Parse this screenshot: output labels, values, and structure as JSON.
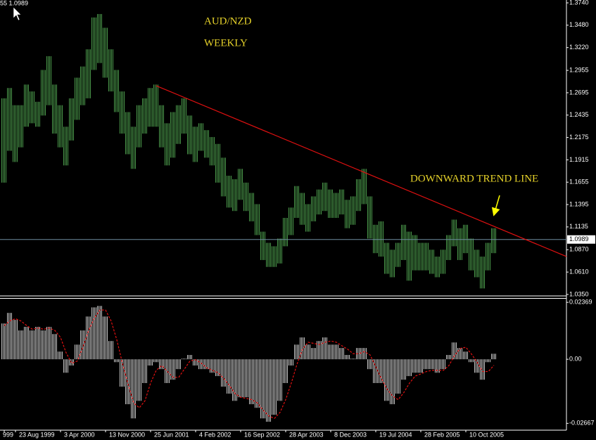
{
  "chart_data": [
    {
      "type": "range",
      "header": "55 1.0989",
      "title": "AUD/NZD",
      "subtitle": "WEEKLY",
      "annotation": "DOWNWARD TREND LINE",
      "color": "#4c9c4c",
      "categories": [
        "999",
        null,
        "23 Aug 1999",
        null,
        null,
        null,
        null,
        null,
        null,
        null,
        "3 Apr 2000",
        null,
        null,
        null,
        null,
        null,
        null,
        null,
        "13 Nov 2000",
        null,
        null,
        null,
        null,
        null,
        null,
        null,
        "25 Jun 2001",
        null,
        null,
        null,
        null,
        null,
        null,
        null,
        "4 Feb 2002",
        null,
        null,
        null,
        null,
        null,
        null,
        null,
        "16 Sep 2002",
        null,
        null,
        null,
        null,
        null,
        null,
        null,
        "28 Apr 2003",
        null,
        null,
        null,
        null,
        null,
        null,
        null,
        "8 Dec 2003",
        null,
        null,
        null,
        null,
        null,
        null,
        null,
        "19 Jul 2004",
        null,
        null,
        null,
        null,
        null,
        null,
        null,
        "28 Feb 2005",
        null,
        null,
        null,
        null,
        null,
        null,
        null,
        "10 Oct 2005",
        null,
        null,
        null,
        null,
        null
      ],
      "high": [
        1.263,
        1.275,
        1.255,
        1.255,
        1.279,
        1.271,
        1.259,
        1.296,
        1.312,
        1.279,
        1.255,
        1.23,
        1.263,
        1.287,
        1.3,
        1.32,
        1.357,
        1.361,
        1.345,
        1.32,
        1.296,
        1.271,
        1.247,
        1.23,
        1.255,
        1.263,
        1.275,
        1.279,
        1.255,
        1.234,
        1.247,
        1.255,
        1.263,
        1.243,
        1.23,
        1.234,
        1.226,
        1.218,
        1.21,
        1.194,
        1.173,
        1.169,
        1.181,
        1.165,
        1.153,
        1.14,
        1.108,
        1.095,
        1.091,
        1.1,
        1.124,
        1.136,
        1.161,
        1.153,
        1.14,
        1.149,
        1.157,
        1.165,
        1.157,
        1.153,
        1.157,
        1.145,
        1.149,
        1.169,
        1.181,
        1.149,
        1.116,
        1.12,
        1.095,
        1.087,
        1.095,
        1.116,
        1.108,
        1.104,
        1.095,
        1.095,
        1.087,
        1.079,
        1.087,
        1.104,
        1.122,
        1.112,
        1.116,
        1.1,
        1.087,
        1.079,
        1.095,
        1.112
      ],
      "low": [
        1.165,
        1.202,
        1.189,
        1.206,
        1.23,
        1.234,
        1.23,
        1.243,
        1.255,
        1.222,
        1.206,
        1.185,
        1.214,
        1.238,
        1.255,
        1.263,
        1.296,
        1.304,
        1.287,
        1.271,
        1.247,
        1.222,
        1.198,
        1.181,
        1.206,
        1.222,
        1.23,
        1.23,
        1.206,
        1.185,
        1.194,
        1.21,
        1.222,
        1.198,
        1.189,
        1.202,
        1.194,
        1.185,
        1.165,
        1.149,
        1.136,
        1.132,
        1.145,
        1.132,
        1.12,
        1.104,
        1.075,
        1.067,
        1.067,
        1.071,
        1.091,
        1.104,
        1.124,
        1.116,
        1.108,
        1.12,
        1.128,
        1.132,
        1.124,
        1.124,
        1.128,
        1.112,
        1.116,
        1.132,
        1.14,
        1.1,
        1.083,
        1.079,
        1.059,
        1.055,
        1.067,
        1.075,
        1.051,
        1.063,
        1.063,
        1.063,
        1.059,
        1.055,
        1.059,
        1.075,
        1.091,
        1.075,
        1.083,
        1.063,
        1.055,
        1.042,
        1.063,
        1.083
      ],
      "current": 1.0989,
      "current_color": "#6e8ca0",
      "trend_line": {
        "color": "#e01010",
        "x": [
          27,
          99.875
        ],
        "y": [
          1.2776,
          1.0791
        ]
      },
      "ylim": [
        1.0333,
        1.3773
      ],
      "yticks": [
        {
          "value": 1.374,
          "label": "1.3740"
        },
        {
          "value": 1.348,
          "label": "1.3480"
        },
        {
          "value": 1.322,
          "label": "1.3220"
        },
        {
          "value": 1.2955,
          "label": "1.2955"
        },
        {
          "value": 1.2695,
          "label": "1.2695"
        },
        {
          "value": 1.2435,
          "label": "1.2435"
        },
        {
          "value": 1.2175,
          "label": "1.2175"
        },
        {
          "value": 1.1915,
          "label": "1.1915"
        },
        {
          "value": 1.1655,
          "label": "1.1655"
        },
        {
          "value": 1.1395,
          "label": "1.1395"
        },
        {
          "value": 1.1135,
          "label": "1.1135"
        },
        {
          "value": 1.087,
          "label": "1.0870"
        },
        {
          "value": 1.061,
          "label": "1.0610"
        },
        {
          "value": 1.035,
          "label": "1.0350"
        }
      ]
    },
    {
      "type": "histogram",
      "series": [
        {
          "color": "#c8c8c8",
          "values": [
            0.0149,
            0.0193,
            0.0164,
            0.012,
            0.0135,
            0.012,
            0.0135,
            0.012,
            0.0135,
            0.0105,
            0.0032,
            -0.0056,
            -0.0026,
            0.0061,
            0.012,
            0.0178,
            0.0216,
            0.0222,
            0.0178,
            0.0076,
            -0.0012,
            -0.0114,
            -0.0187,
            -0.0246,
            -0.0173,
            -0.0099,
            -0.0026,
            -0.0012,
            -0.0041,
            -0.0099,
            -0.0085,
            -0.0041,
            0.0003,
            0.0018,
            -0.0026,
            -0.0041,
            -0.0041,
            -0.0056,
            -0.007,
            -0.0114,
            -0.0143,
            -0.0173,
            -0.0158,
            -0.0158,
            -0.0187,
            -0.0202,
            -0.0246,
            -0.026,
            -0.0231,
            -0.0173,
            -0.0099,
            -0.0026,
            0.0061,
            0.0091,
            0.0061,
            0.0047,
            0.0076,
            0.0091,
            0.0061,
            0.0061,
            0.0047,
            0.0018,
            0.0003,
            0.0047,
            0.0047,
            -0.0041,
            -0.0099,
            -0.0099,
            -0.0173,
            -0.0187,
            -0.0143,
            -0.0085,
            -0.007,
            -0.0056,
            -0.0056,
            -0.0041,
            -0.0041,
            -0.0056,
            -0.0041,
            0.0018,
            0.007,
            0.0047,
            0.0032,
            -0.0012,
            -0.0056,
            -0.0085,
            -0.0012,
            0.0023
          ]
        },
        {
          "color": "#e01010",
          "dashed": true,
          "values": [
            0.014,
            0.016,
            0.0169,
            0.0159,
            0.014,
            0.0125,
            0.013,
            0.0125,
            0.013,
            0.012,
            0.0091,
            0.0027,
            -0.0017,
            -0.0007,
            0.0052,
            0.012,
            0.0171,
            0.0205,
            0.0205,
            0.0159,
            0.0081,
            -0.0017,
            -0.0104,
            -0.0182,
            -0.0202,
            -0.0173,
            -0.0099,
            -0.0046,
            -0.0026,
            -0.0051,
            -0.0075,
            -0.0075,
            -0.0041,
            -0.0007,
            -0.0002,
            -0.0016,
            -0.0036,
            -0.0046,
            -0.0056,
            -0.008,
            -0.0109,
            -0.0143,
            -0.0158,
            -0.0163,
            -0.0168,
            -0.0182,
            -0.0212,
            -0.0236,
            -0.0246,
            -0.0221,
            -0.0168,
            -0.0099,
            -0.0021,
            0.0042,
            0.0071,
            0.0066,
            0.0061,
            0.0071,
            0.0076,
            0.0071,
            0.0056,
            0.0042,
            0.0023,
            0.0023,
            0.0032,
            0.0018,
            -0.0031,
            -0.008,
            -0.0124,
            -0.0153,
            -0.0168,
            -0.0138,
            -0.0099,
            -0.007,
            -0.0061,
            -0.0051,
            -0.0046,
            -0.0046,
            -0.0046,
            -0.0026,
            0.0016,
            0.0045,
            0.005,
            0.0022,
            -0.0012,
            -0.0051,
            -0.0051,
            -0.0025
          ]
        }
      ],
      "ylim": [
        -0.0295,
        0.0252
      ],
      "yticks": [
        0.02369,
        {
          "value": 0,
          "label": "0.00"
        },
        -0.02667
      ]
    }
  ]
}
